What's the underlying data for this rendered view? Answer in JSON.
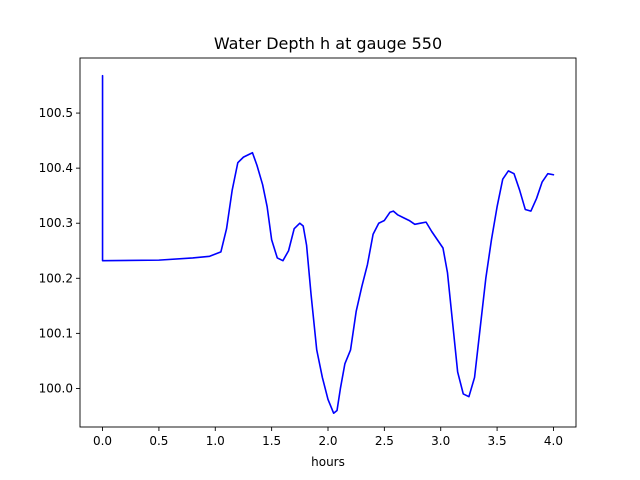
{
  "chart_data": {
    "type": "line",
    "title": "Water Depth h at gauge 550",
    "xlabel": "hours",
    "ylabel": "",
    "xlim": [
      -0.2,
      4.2
    ],
    "ylim": [
      99.93,
      100.6
    ],
    "xticks": [
      0.0,
      0.5,
      1.0,
      1.5,
      2.0,
      2.5,
      3.0,
      3.5,
      4.0
    ],
    "xtick_labels": [
      "0.0",
      "0.5",
      "1.0",
      "1.5",
      "2.0",
      "2.5",
      "3.0",
      "3.5",
      "4.0"
    ],
    "yticks": [
      100.0,
      100.1,
      100.2,
      100.3,
      100.4,
      100.5
    ],
    "ytick_labels": [
      "100.0",
      "100.1",
      "100.2",
      "100.3",
      "100.4",
      "100.5"
    ],
    "grid": false,
    "series": [
      {
        "color": "#0000ff",
        "x": [
          0.0,
          0.0,
          0.0,
          0.5,
          0.8,
          0.95,
          1.05,
          1.1,
          1.15,
          1.2,
          1.25,
          1.3,
          1.33,
          1.37,
          1.42,
          1.46,
          1.5,
          1.55,
          1.6,
          1.65,
          1.7,
          1.75,
          1.78,
          1.81,
          1.85,
          1.9,
          1.95,
          2.0,
          2.05,
          2.08,
          2.11,
          2.15,
          2.2,
          2.25,
          2.3,
          2.35,
          2.4,
          2.45,
          2.5,
          2.55,
          2.58,
          2.62,
          2.67,
          2.72,
          2.77,
          2.82,
          2.87,
          2.92,
          2.97,
          3.02,
          3.06,
          3.1,
          3.15,
          3.2,
          3.25,
          3.3,
          3.35,
          3.4,
          3.45,
          3.5,
          3.55,
          3.6,
          3.65,
          3.7,
          3.75,
          3.8,
          3.85,
          3.9,
          3.95,
          4.0
        ],
        "y": [
          100.568,
          100.3,
          100.232,
          100.233,
          100.237,
          100.24,
          100.248,
          100.29,
          100.36,
          100.41,
          100.42,
          100.425,
          100.428,
          100.405,
          100.37,
          100.33,
          100.27,
          100.237,
          100.232,
          100.25,
          100.29,
          100.3,
          100.295,
          100.26,
          100.17,
          100.07,
          100.02,
          99.98,
          99.955,
          99.96,
          100.0,
          100.045,
          100.07,
          100.14,
          100.185,
          100.225,
          100.28,
          100.3,
          100.305,
          100.32,
          100.322,
          100.315,
          100.31,
          100.305,
          100.298,
          100.3,
          100.302,
          100.285,
          100.27,
          100.255,
          100.21,
          100.13,
          100.03,
          99.99,
          99.985,
          100.02,
          100.11,
          100.2,
          100.27,
          100.33,
          100.38,
          100.395,
          100.39,
          100.36,
          100.325,
          100.322,
          100.345,
          100.375,
          100.39,
          100.388
        ]
      }
    ]
  }
}
